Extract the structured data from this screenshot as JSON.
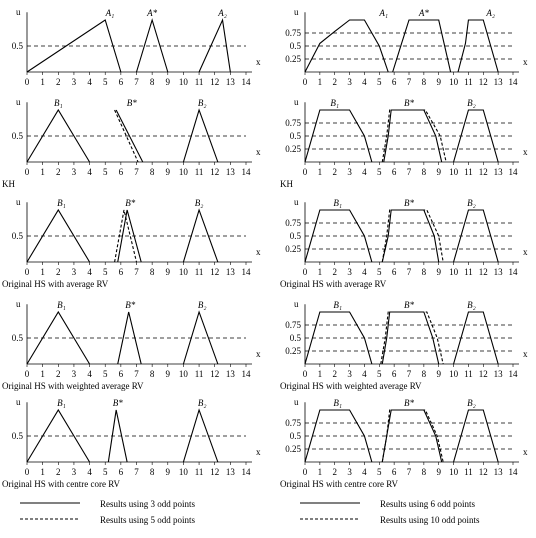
{
  "figure": {
    "axis_x_label": "x",
    "axis_y_label": "u",
    "x_ticks": [
      "0",
      "1",
      "2",
      "3",
      "4",
      "5",
      "6",
      "7",
      "8",
      "9",
      "10",
      "11",
      "12",
      "13",
      "14"
    ]
  },
  "panels_left": [
    {
      "caption": "",
      "y_ticks": [
        {
          "label": "0.5",
          "value": 0.5
        }
      ],
      "set_labels": [
        "A₁",
        "A*",
        "A₂"
      ],
      "label_positions": [
        5.3,
        8.0,
        12.5
      ],
      "solid_series": [
        [
          [
            0,
            0
          ],
          [
            5,
            1
          ],
          [
            6,
            0
          ]
        ],
        [
          [
            7,
            0
          ],
          [
            8,
            1
          ],
          [
            9,
            0
          ]
        ],
        [
          [
            11,
            0
          ],
          [
            12.5,
            1
          ],
          [
            13,
            0
          ]
        ]
      ],
      "dashed_series": []
    },
    {
      "caption": "KH",
      "y_ticks": [
        {
          "label": "0.5",
          "value": 0.5
        }
      ],
      "set_labels": [
        "B₁",
        "B*",
        "B₂"
      ],
      "label_positions": [
        2.0,
        6.7,
        11.2
      ],
      "solid_series": [
        [
          [
            0,
            0
          ],
          [
            2,
            1
          ],
          [
            4,
            0
          ]
        ],
        [
          [
            5.7,
            1
          ],
          [
            7.4,
            0
          ]
        ],
        [
          [
            10,
            0
          ],
          [
            11,
            1
          ],
          [
            12.2,
            0
          ]
        ]
      ],
      "dashed_series": [
        [
          [
            5.6,
            1
          ],
          [
            7.1,
            0
          ]
        ]
      ]
    },
    {
      "caption": "Original HS with average RV",
      "y_ticks": [
        {
          "label": "0.5",
          "value": 0.5
        }
      ],
      "set_labels": [
        "B₁",
        "B*",
        "B₂"
      ],
      "label_positions": [
        2.2,
        6.6,
        11.0
      ],
      "solid_series": [
        [
          [
            0,
            0
          ],
          [
            2,
            1
          ],
          [
            4,
            0
          ]
        ],
        [
          [
            5.8,
            0
          ],
          [
            6.4,
            1
          ],
          [
            7.3,
            0
          ]
        ],
        [
          [
            10,
            0
          ],
          [
            11,
            1
          ],
          [
            12.2,
            0
          ]
        ]
      ],
      "dashed_series": [
        [
          [
            5.6,
            0
          ],
          [
            6.2,
            1
          ],
          [
            7.0,
            0
          ]
        ]
      ]
    },
    {
      "caption": "Original HS with weighted average RV",
      "y_ticks": [
        {
          "label": "0.5",
          "value": 0.5
        }
      ],
      "set_labels": [
        "B₁",
        "B*",
        "B₂"
      ],
      "label_positions": [
        2.2,
        6.6,
        11.2
      ],
      "solid_series": [
        [
          [
            0,
            0
          ],
          [
            2,
            1
          ],
          [
            4,
            0
          ]
        ],
        [
          [
            5.8,
            0
          ],
          [
            6.5,
            1
          ],
          [
            7.3,
            0
          ]
        ],
        [
          [
            10,
            0
          ],
          [
            11,
            1
          ],
          [
            12.2,
            0
          ]
        ]
      ],
      "dashed_series": []
    },
    {
      "caption": "Original HS with centre core RV",
      "y_ticks": [
        {
          "label": "0.5",
          "value": 0.5
        }
      ],
      "set_labels": [
        "B₁",
        "B*",
        "B₂"
      ],
      "label_positions": [
        2.2,
        5.8,
        11.2
      ],
      "solid_series": [
        [
          [
            0,
            0
          ],
          [
            2,
            1
          ],
          [
            4,
            0
          ]
        ],
        [
          [
            5.2,
            0
          ],
          [
            5.7,
            1
          ],
          [
            6.4,
            0
          ]
        ],
        [
          [
            10,
            0
          ],
          [
            11,
            1
          ],
          [
            12.2,
            0
          ]
        ]
      ],
      "dashed_series": []
    }
  ],
  "panels_right": [
    {
      "caption": "",
      "y_ticks": [
        {
          "label": "0.75",
          "value": 0.75
        },
        {
          "label": "0.5",
          "value": 0.5
        },
        {
          "label": "0.25",
          "value": 0.25
        }
      ],
      "set_labels": [
        "A₁",
        "A*",
        "A₂"
      ],
      "label_positions": [
        5.3,
        8.0,
        12.5
      ],
      "solid_series": [
        [
          [
            0,
            0
          ],
          [
            1,
            0.55
          ],
          [
            2,
            0.78
          ],
          [
            3,
            1
          ],
          [
            4,
            1
          ],
          [
            5,
            0.5
          ],
          [
            5.6,
            0
          ]
        ],
        [
          [
            5.9,
            0
          ],
          [
            6.5,
            0.55
          ],
          [
            7,
            1
          ],
          [
            9,
            1
          ],
          [
            9.4,
            0.5
          ],
          [
            9.8,
            0
          ]
        ],
        [
          [
            10.3,
            0
          ],
          [
            10.8,
            0.55
          ],
          [
            11,
            1
          ],
          [
            12,
            1
          ],
          [
            12.5,
            0.5
          ],
          [
            13,
            0
          ]
        ]
      ],
      "dashed_series": []
    },
    {
      "caption": "KH",
      "y_ticks": [
        {
          "label": "0.75",
          "value": 0.75
        },
        {
          "label": "0.5",
          "value": 0.5
        },
        {
          "label": "0.25",
          "value": 0.25
        }
      ],
      "set_labels": [
        "B₁",
        "B*",
        "B₂"
      ],
      "label_positions": [
        2.0,
        7.0,
        11.2
      ],
      "solid_series": [
        [
          [
            0,
            0
          ],
          [
            0.5,
            0.5
          ],
          [
            1,
            1
          ],
          [
            3,
            1
          ],
          [
            4,
            0.5
          ],
          [
            4.5,
            0
          ]
        ],
        [
          [
            5.3,
            0
          ],
          [
            5.6,
            0.5
          ],
          [
            5.8,
            1
          ],
          [
            8,
            1
          ],
          [
            8.8,
            0.5
          ],
          [
            9.2,
            0
          ]
        ],
        [
          [
            10,
            0
          ],
          [
            10.5,
            0.5
          ],
          [
            11,
            1
          ],
          [
            12,
            1
          ],
          [
            12.5,
            0.5
          ],
          [
            13,
            0
          ]
        ]
      ],
      "dashed_series": [
        [
          [
            5.2,
            0
          ],
          [
            5.5,
            0.5
          ],
          [
            5.7,
            1
          ],
          [
            8.1,
            1
          ],
          [
            9.1,
            0.5
          ],
          [
            9.5,
            0
          ]
        ]
      ]
    },
    {
      "caption": "Original HS with average RV",
      "y_ticks": [
        {
          "label": "0.75",
          "value": 0.75
        },
        {
          "label": "0.5",
          "value": 0.5
        },
        {
          "label": "0.25",
          "value": 0.25
        }
      ],
      "set_labels": [
        "B₁",
        "B*",
        "B₂"
      ],
      "label_positions": [
        2.2,
        7.0,
        11.2
      ],
      "solid_series": [
        [
          [
            0,
            0
          ],
          [
            0.5,
            0.5
          ],
          [
            1,
            1
          ],
          [
            3,
            1
          ],
          [
            4,
            0.5
          ],
          [
            4.5,
            0
          ]
        ],
        [
          [
            5.2,
            0
          ],
          [
            5.6,
            0.5
          ],
          [
            5.8,
            1
          ],
          [
            8,
            1
          ],
          [
            8.7,
            0.5
          ],
          [
            9,
            0
          ]
        ],
        [
          [
            10,
            0
          ],
          [
            10.5,
            0.5
          ],
          [
            11,
            1
          ],
          [
            12,
            1
          ],
          [
            12.5,
            0.5
          ],
          [
            13,
            0
          ]
        ]
      ],
      "dashed_series": [
        [
          [
            5.2,
            0
          ],
          [
            5.5,
            0.5
          ],
          [
            5.7,
            1
          ],
          [
            8.2,
            1
          ],
          [
            9,
            0.5
          ],
          [
            9.3,
            0
          ]
        ]
      ]
    },
    {
      "caption": "Original HS with weighted average RV",
      "y_ticks": [
        {
          "label": "0.75",
          "value": 0.75
        },
        {
          "label": "0.5",
          "value": 0.5
        },
        {
          "label": "0.25",
          "value": 0.25
        }
      ],
      "set_labels": [
        "B₁",
        "B*",
        "B₂"
      ],
      "label_positions": [
        2.2,
        7.0,
        11.2
      ],
      "solid_series": [
        [
          [
            0,
            0
          ],
          [
            0.5,
            0.5
          ],
          [
            1,
            1
          ],
          [
            3,
            1
          ],
          [
            4,
            0.5
          ],
          [
            4.5,
            0
          ]
        ],
        [
          [
            5.2,
            0
          ],
          [
            5.5,
            0.5
          ],
          [
            5.7,
            1
          ],
          [
            8,
            1
          ],
          [
            8.6,
            0.5
          ],
          [
            9,
            0
          ]
        ],
        [
          [
            10,
            0
          ],
          [
            10.5,
            0.5
          ],
          [
            11,
            1
          ],
          [
            12,
            1
          ],
          [
            12.5,
            0.5
          ],
          [
            13,
            0
          ]
        ]
      ],
      "dashed_series": [
        [
          [
            5.1,
            0
          ],
          [
            5.4,
            0.5
          ],
          [
            5.6,
            1
          ],
          [
            8.2,
            1
          ],
          [
            8.9,
            0.5
          ],
          [
            9.3,
            0
          ]
        ]
      ]
    },
    {
      "caption": "Original HS with centre core RV",
      "y_ticks": [
        {
          "label": "0.75",
          "value": 0.75
        },
        {
          "label": "0.5",
          "value": 0.5
        },
        {
          "label": "0.25",
          "value": 0.25
        }
      ],
      "set_labels": [
        "B₁",
        "B*",
        "B₂"
      ],
      "label_positions": [
        2.2,
        7.0,
        11.2
      ],
      "solid_series": [
        [
          [
            0,
            0
          ],
          [
            0.5,
            0.5
          ],
          [
            1,
            1
          ],
          [
            3,
            1
          ],
          [
            4,
            0.5
          ],
          [
            4.5,
            0
          ]
        ],
        [
          [
            5.2,
            0
          ],
          [
            5.5,
            0.5
          ],
          [
            5.8,
            1
          ],
          [
            8,
            1
          ],
          [
            8.8,
            0.5
          ],
          [
            9.2,
            0
          ]
        ],
        [
          [
            10,
            0
          ],
          [
            10.5,
            0.5
          ],
          [
            11,
            1
          ],
          [
            12,
            1
          ],
          [
            12.5,
            0.5
          ],
          [
            13,
            0
          ]
        ]
      ],
      "dashed_series": [
        [
          [
            5.2,
            0
          ],
          [
            5.5,
            0.5
          ],
          [
            5.7,
            1
          ],
          [
            8.1,
            1
          ],
          [
            8.9,
            0.5
          ],
          [
            9.3,
            0
          ]
        ]
      ]
    }
  ],
  "legend_left": {
    "solid_label": "Results using 3 odd points",
    "dashed_label": "Results using 5 odd points"
  },
  "legend_right": {
    "solid_label": "Results using 6 odd points",
    "dashed_label": "Results using 10 odd points"
  }
}
